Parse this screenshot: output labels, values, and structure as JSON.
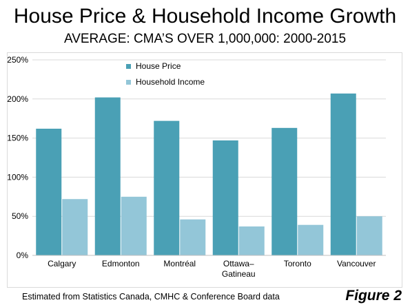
{
  "title": "House Price & Household Income Growth",
  "subtitle": "AVERAGE: CMA’S OVER 1,000,000: 2000-2015",
  "footer": "Estimated from Statistics Canada, CMHC & Conference Board data",
  "figure_label": "Figure 2",
  "colors": {
    "house_price": "#4aa0b5",
    "household_income": "#93c6d8",
    "gridline": "#d9d9d9",
    "axis": "#bfbfbf"
  },
  "chart_data": {
    "type": "bar",
    "categories": [
      "Calgary",
      "Edmonton",
      "Montréal",
      "Ottawa–\nGatineau",
      "Toronto",
      "Vancouver"
    ],
    "series": [
      {
        "name": "House Price",
        "values": [
          162,
          202,
          172,
          147,
          163,
          207
        ]
      },
      {
        "name": "Household Income",
        "values": [
          72,
          75,
          46,
          37,
          39,
          50
        ]
      }
    ],
    "ylim": [
      0,
      250
    ],
    "yticks": [
      0,
      50,
      100,
      150,
      200,
      250
    ],
    "ytick_labels": [
      "0%",
      "50%",
      "100%",
      "150%",
      "200%",
      "250%"
    ],
    "grid": true,
    "legend_position": "top-left"
  }
}
